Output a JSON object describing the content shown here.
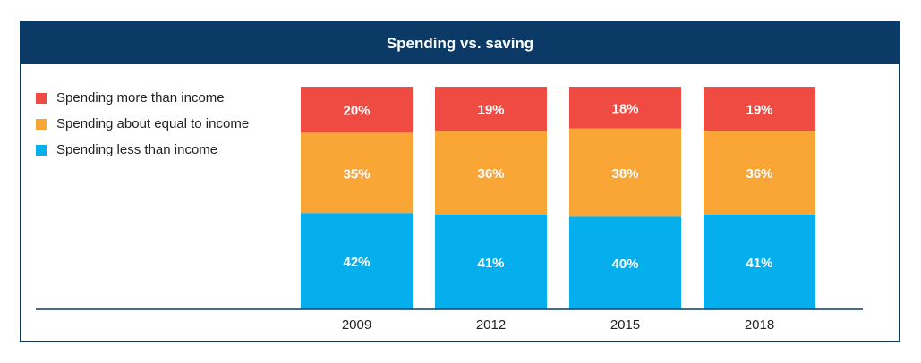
{
  "title": "Spending vs. saving",
  "colors": {
    "frame": "#0b3a66",
    "more": "#f04b43",
    "equal": "#f9a637",
    "less": "#05aeec",
    "bar_text": "#ffffff"
  },
  "legend": [
    {
      "label": "Spending more than income",
      "color": "#f04b43"
    },
    {
      "label": "Spending about equal to income",
      "color": "#f9a637"
    },
    {
      "label": "Spending less than income",
      "color": "#05aeec"
    }
  ],
  "chart_data": {
    "type": "bar",
    "stacked": true,
    "title": "Spending vs. saving",
    "categories": [
      "2009",
      "2012",
      "2015",
      "2018"
    ],
    "series": [
      {
        "name": "Spending less than income",
        "values": [
          42,
          41,
          40,
          41
        ],
        "labels": [
          "42%",
          "41%",
          "40%",
          "41%"
        ]
      },
      {
        "name": "Spending about equal to income",
        "values": [
          35,
          36,
          38,
          36
        ],
        "labels": [
          "35%",
          "36%",
          "38%",
          "36%"
        ]
      },
      {
        "name": "Spending more than income",
        "values": [
          20,
          19,
          18,
          19
        ],
        "labels": [
          "20%",
          "19%",
          "18%",
          "19%"
        ]
      }
    ],
    "xlabel": "",
    "ylabel": "",
    "ylim": [
      0,
      100
    ],
    "grid": false,
    "legend_position": "top-left"
  }
}
